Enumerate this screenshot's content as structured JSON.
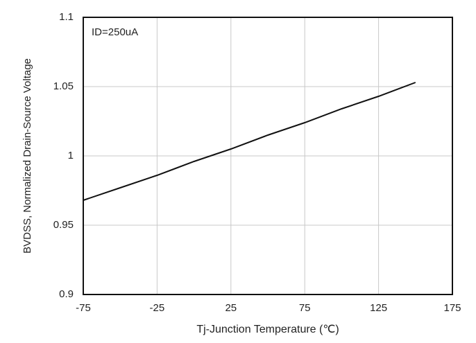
{
  "chart_data": {
    "type": "line",
    "annotation": "ID=250uA",
    "xlabel": "Tj-Junction Temperature (℃)",
    "ylabel": "BVDSS, Normalized Drain-Source Voltage",
    "x": [
      -75,
      -50,
      -25,
      0,
      25,
      50,
      75,
      100,
      125,
      150
    ],
    "series": [
      {
        "name": "BVDSS",
        "color": "#111111",
        "values": [
          0.968,
          0.977,
          0.986,
          0.996,
          1.005,
          1.015,
          1.024,
          1.034,
          1.043,
          1.053
        ]
      }
    ],
    "xlim": [
      -75,
      175
    ],
    "xticks": [
      -75,
      -25,
      25,
      75,
      125,
      175
    ],
    "ylim": [
      0.9,
      1.1
    ],
    "yticks": [
      0.9,
      0.95,
      1,
      1.05,
      1.1
    ],
    "grid": true
  }
}
